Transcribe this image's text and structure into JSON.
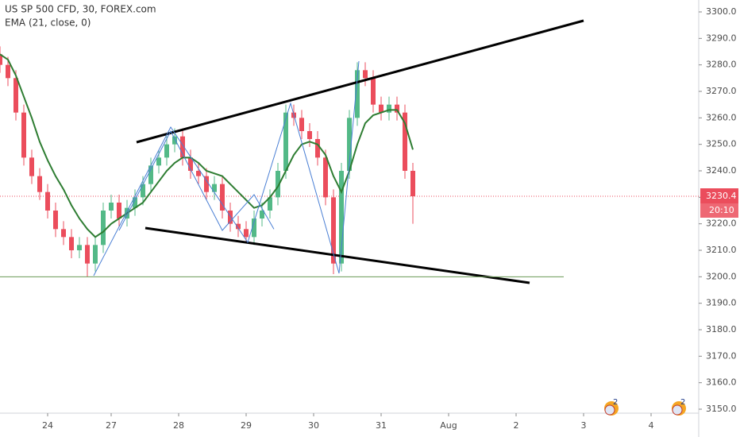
{
  "chart_data": {
    "type": "candlestick",
    "title": "US SP 500 CFD, 30, FOREX.com",
    "x": [
      0,
      1,
      2,
      3,
      4,
      5,
      6,
      7,
      8,
      9,
      10,
      11,
      12,
      13,
      14,
      15,
      16,
      17,
      18,
      19,
      20,
      21,
      22,
      23,
      24,
      25,
      26,
      27,
      28,
      29,
      30,
      31,
      32,
      33,
      34,
      35,
      36,
      37,
      38,
      39,
      40,
      41,
      42,
      43,
      44,
      45,
      46,
      47,
      48,
      49,
      50,
      51,
      52
    ],
    "open": [
      3284,
      3280,
      3275,
      3262,
      3245,
      3238,
      3232,
      3225,
      3218,
      3215,
      3210,
      3212,
      3205,
      3212,
      3225,
      3228,
      3222,
      3226,
      3230,
      3235,
      3242,
      3245,
      3250,
      3253,
      3245,
      3240,
      3238,
      3232,
      3235,
      3225,
      3220,
      3218,
      3215,
      3222,
      3225,
      3230,
      3240,
      3262,
      3260,
      3255,
      3252,
      3245,
      3230,
      3205,
      3240,
      3260,
      3278,
      3275,
      3265,
      3262,
      3265,
      3262,
      3240
    ],
    "high": [
      3287,
      3283,
      3278,
      3265,
      3248,
      3241,
      3235,
      3228,
      3221,
      3218,
      3215,
      3215,
      3215,
      3228,
      3231,
      3231,
      3229,
      3233,
      3238,
      3245,
      3248,
      3253,
      3256,
      3256,
      3248,
      3243,
      3241,
      3238,
      3238,
      3228,
      3223,
      3221,
      3225,
      3228,
      3233,
      3243,
      3265,
      3265,
      3263,
      3258,
      3255,
      3248,
      3233,
      3243,
      3263,
      3281,
      3281,
      3278,
      3268,
      3268,
      3268,
      3265,
      3243
    ],
    "low": [
      3277,
      3272,
      3259,
      3242,
      3235,
      3229,
      3222,
      3215,
      3212,
      3207,
      3207,
      3200,
      3202,
      3209,
      3222,
      3219,
      3219,
      3223,
      3227,
      3232,
      3239,
      3242,
      3247,
      3242,
      3237,
      3235,
      3229,
      3229,
      3222,
      3217,
      3215,
      3213,
      3212,
      3219,
      3222,
      3227,
      3237,
      3257,
      3252,
      3249,
      3242,
      3227,
      3201,
      3202,
      3237,
      3257,
      3272,
      3262,
      3259,
      3259,
      3259,
      3237,
      3220
    ],
    "close": [
      3280,
      3275,
      3262,
      3245,
      3238,
      3232,
      3225,
      3218,
      3215,
      3210,
      3212,
      3205,
      3212,
      3225,
      3228,
      3222,
      3226,
      3230,
      3235,
      3242,
      3245,
      3250,
      3253,
      3245,
      3240,
      3238,
      3232,
      3235,
      3225,
      3220,
      3218,
      3215,
      3222,
      3225,
      3230,
      3240,
      3262,
      3260,
      3255,
      3252,
      3245,
      3230,
      3205,
      3240,
      3260,
      3278,
      3275,
      3265,
      3262,
      3265,
      3262,
      3240,
      3230.4
    ],
    "up_color": "#53b987",
    "down_color": "#eb4d5c",
    "ema": {
      "name": "EMA (21, close, 0)",
      "color": "#2e7d32",
      "values": [
        3284,
        3282,
        3276,
        3268,
        3260,
        3251,
        3244,
        3238,
        3233,
        3227,
        3222,
        3218,
        3215,
        3217,
        3220,
        3222,
        3224,
        3226,
        3228,
        3232,
        3236,
        3240,
        3243,
        3245,
        3245,
        3243,
        3240,
        3239,
        3238,
        3235,
        3232,
        3229,
        3226,
        3227,
        3230,
        3234,
        3240,
        3246,
        3250,
        3251,
        3250,
        3246,
        3238,
        3232,
        3240,
        3250,
        3258,
        3261,
        3262,
        3263,
        3263,
        3258,
        3248
      ]
    },
    "last_price": 3230.4,
    "countdown": "20:10",
    "ylim": [
      3148.5,
      3304.5
    ],
    "yticks": [
      {
        "value": 3150,
        "label": "3150.0"
      },
      {
        "value": 3160,
        "label": "3160.0"
      },
      {
        "value": 3170,
        "label": "3170.0"
      },
      {
        "value": 3180,
        "label": "3180.0"
      },
      {
        "value": 3190,
        "label": "3190.0"
      },
      {
        "value": 3200,
        "label": "3200.0"
      },
      {
        "value": 3210,
        "label": "3210.0"
      },
      {
        "value": 3220,
        "label": "3220.0"
      },
      {
        "value": 3230,
        "label": "3230.0"
      },
      {
        "value": 3240,
        "label": "3240.0"
      },
      {
        "value": 3250,
        "label": "3250.0"
      },
      {
        "value": 3260,
        "label": "3260.0"
      },
      {
        "value": 3270,
        "label": "3270.0"
      },
      {
        "value": 3280,
        "label": "3280.0"
      },
      {
        "value": 3290,
        "label": "3290.0"
      },
      {
        "value": 3300,
        "label": "3300.0"
      }
    ],
    "xlim": [
      0,
      88
    ],
    "xticks": [
      {
        "value": 6,
        "label": "24"
      },
      {
        "value": 14,
        "label": "27"
      },
      {
        "value": 22.5,
        "label": "28"
      },
      {
        "value": 31,
        "label": "29"
      },
      {
        "value": 39.5,
        "label": "30"
      },
      {
        "value": 48,
        "label": "31"
      },
      {
        "value": 56.5,
        "label": "Aug"
      },
      {
        "value": 65,
        "label": "2"
      },
      {
        "value": 73.5,
        "label": "3"
      },
      {
        "value": 82,
        "label": "4"
      }
    ],
    "drawings": [
      {
        "color": "#000000",
        "width": 3,
        "x": [
          17.2,
          73.5
        ],
        "y": [
          3250.8,
          3296.7
        ]
      },
      {
        "color": "#000000",
        "width": 3,
        "x": [
          18.3,
          66.7
        ],
        "y": [
          3218.4,
          3197.7
        ]
      },
      {
        "color": "#6a9955",
        "width": 1,
        "x": [
          0,
          71
        ],
        "y": [
          3200,
          3200
        ]
      },
      {
        "color": "#4a7fd4",
        "width": 1,
        "x": [
          11.8,
          21.5,
          31.2,
          36.6,
          42.7,
          45.2
        ],
        "y": [
          3200.4,
          3256.5,
          3213,
          3265.5,
          3201.3,
          3281.4
        ]
      },
      {
        "color": "#4a7fd4",
        "width": 1,
        "x": [
          15,
          21.5,
          28,
          32,
          34.5
        ],
        "y": [
          3217.5,
          3255,
          3217.5,
          3231,
          3218
        ]
      }
    ],
    "badges": [
      "2",
      "2"
    ]
  }
}
